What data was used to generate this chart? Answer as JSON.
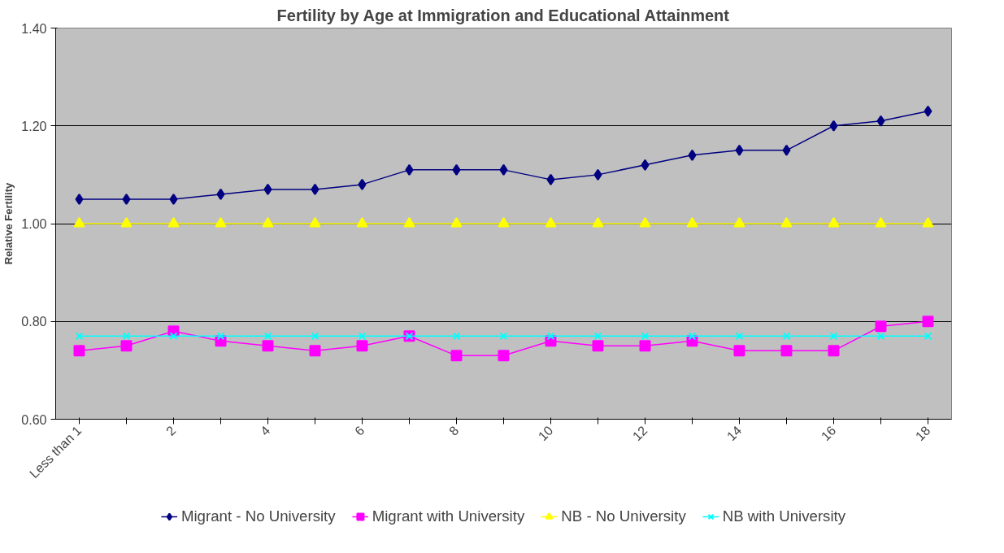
{
  "chart_data": {
    "type": "line",
    "title": "Fertility by Age at Immigration and Educational Attainment",
    "ylabel": "Relative Fertility",
    "categories": [
      "Less than 1",
      null,
      "2",
      null,
      "4",
      null,
      "6",
      null,
      "8",
      null,
      "10",
      null,
      "12",
      null,
      "14",
      null,
      "16",
      null,
      "18"
    ],
    "series": [
      {
        "name": "Migrant - No University",
        "color": "#000080",
        "marker": "diamond",
        "values": [
          1.05,
          1.05,
          1.05,
          1.06,
          1.07,
          1.07,
          1.08,
          1.11,
          1.11,
          1.11,
          1.09,
          1.1,
          1.12,
          1.14,
          1.15,
          1.15,
          1.2,
          1.21,
          1.23
        ]
      },
      {
        "name": "Migrant with University",
        "color": "#ff00ff",
        "marker": "square",
        "values": [
          0.74,
          0.75,
          0.78,
          0.76,
          0.75,
          0.74,
          0.75,
          0.77,
          0.73,
          0.73,
          0.76,
          0.75,
          0.75,
          0.76,
          0.74,
          0.74,
          0.74,
          0.79,
          0.8
        ]
      },
      {
        "name": "NB - No University",
        "color": "#ffff00",
        "marker": "triangle",
        "values": [
          1.0,
          1.0,
          1.0,
          1.0,
          1.0,
          1.0,
          1.0,
          1.0,
          1.0,
          1.0,
          1.0,
          1.0,
          1.0,
          1.0,
          1.0,
          1.0,
          1.0,
          1.0,
          1.0
        ]
      },
      {
        "name": "NB with University",
        "color": "#00ffff",
        "marker": "x",
        "values": [
          0.77,
          0.77,
          0.77,
          0.77,
          0.77,
          0.77,
          0.77,
          0.77,
          0.77,
          0.77,
          0.77,
          0.77,
          0.77,
          0.77,
          0.77,
          0.77,
          0.77,
          0.77,
          0.77
        ]
      }
    ],
    "ylim": [
      0.6,
      1.4
    ],
    "yticks": [
      {
        "value": 0.6,
        "label": "0.60"
      },
      {
        "value": 0.8,
        "label": "0.80"
      },
      {
        "value": 1.0,
        "label": "1.00"
      },
      {
        "value": 1.2,
        "label": "1.20"
      },
      {
        "value": 1.4,
        "label": "1.40"
      }
    ],
    "grid": "y",
    "legend": "bottom"
  }
}
